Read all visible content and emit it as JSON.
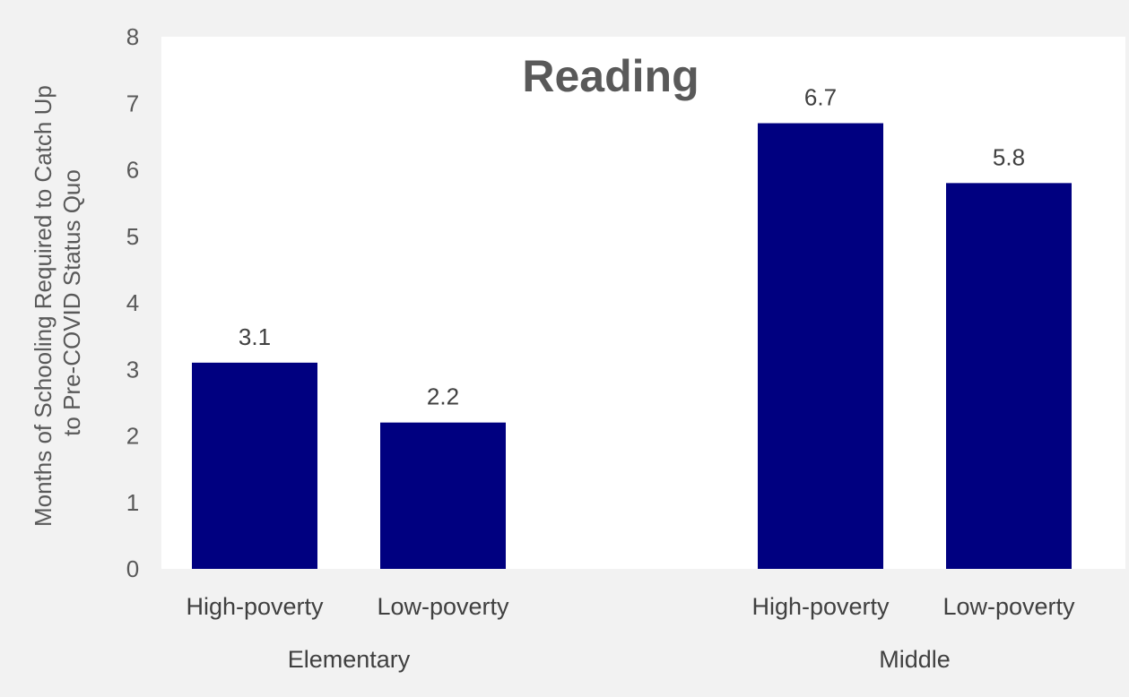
{
  "chart_data": {
    "type": "bar",
    "title": "Reading",
    "ylabel_lines": [
      "Months of Schooling Required to Catch Up",
      "to Pre-COVID Status Quo"
    ],
    "xlabel": "",
    "ylim": [
      0,
      8
    ],
    "yticks": [
      0,
      1,
      2,
      3,
      4,
      5,
      6,
      7,
      8
    ],
    "grid": false,
    "bar_color": "#000080",
    "plot_background": "#ffffff",
    "page_background": "#f2f2f2",
    "groups": [
      {
        "name": "Elementary",
        "categories": [
          "High-poverty",
          "Low-poverty"
        ],
        "values": [
          3.1,
          2.2
        ],
        "labels": [
          "3.1",
          "2.2"
        ]
      },
      {
        "name": "Middle",
        "categories": [
          "High-poverty",
          "Low-poverty"
        ],
        "values": [
          6.7,
          5.8
        ],
        "labels": [
          "6.7",
          "5.8"
        ]
      }
    ]
  }
}
